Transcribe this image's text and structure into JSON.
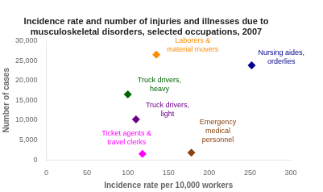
{
  "chart_data": {
    "type": "scatter",
    "title": "Incidence rate and number of injuries and illnesses due to\nmusculoskeletal disorders, selected occupations, 2007",
    "xlabel": "Incidence rate per 10,000 workers",
    "ylabel": "Number of cases",
    "x": [
      135,
      252,
      100,
      110,
      118,
      178
    ],
    "values": [
      26500,
      23800,
      16500,
      10200,
      1500,
      1800
    ],
    "colors": [
      "#FF8C00",
      "#00008B",
      "#006400",
      "#6B008B",
      "#FF00FF",
      "#8B4513"
    ],
    "marker": "diamond",
    "annotations": [
      {
        "text": "Laborers &\nmaterial movers",
        "x": 148,
        "y": 26800,
        "color": "#FF8C00"
      },
      {
        "text": "Nursing aides,\norderlies",
        "x": 260,
        "y": 23800,
        "color": "#00008B"
      },
      {
        "text": "Truck drivers,\nheavy",
        "x": 112,
        "y": 16800,
        "color": "#006400"
      },
      {
        "text": "Truck drivers,\nlight",
        "x": 122,
        "y": 10500,
        "color": "#6B008B"
      },
      {
        "text": "Ticket agents &\ntravel clerks",
        "x": 68,
        "y": 3500,
        "color": "#FF00FF"
      },
      {
        "text": "Emergency\nmedical\npersonnel",
        "x": 188,
        "y": 4000,
        "color": "#8B4513"
      }
    ],
    "xlim": [
      0,
      300
    ],
    "ylim": [
      0,
      30000
    ],
    "xticks": [
      0,
      50,
      100,
      150,
      200,
      250,
      300
    ],
    "yticks": [
      0,
      {
        "value": 5000,
        "label": "5,000"
      },
      {
        "value": 10000,
        "label": "10,000"
      },
      {
        "value": 15000,
        "label": "15,000"
      },
      {
        "value": 20000,
        "label": "20,000"
      },
      {
        "value": 25000,
        "label": "25,000"
      },
      {
        "value": 30000,
        "label": "30,000"
      }
    ],
    "grid": false
  }
}
